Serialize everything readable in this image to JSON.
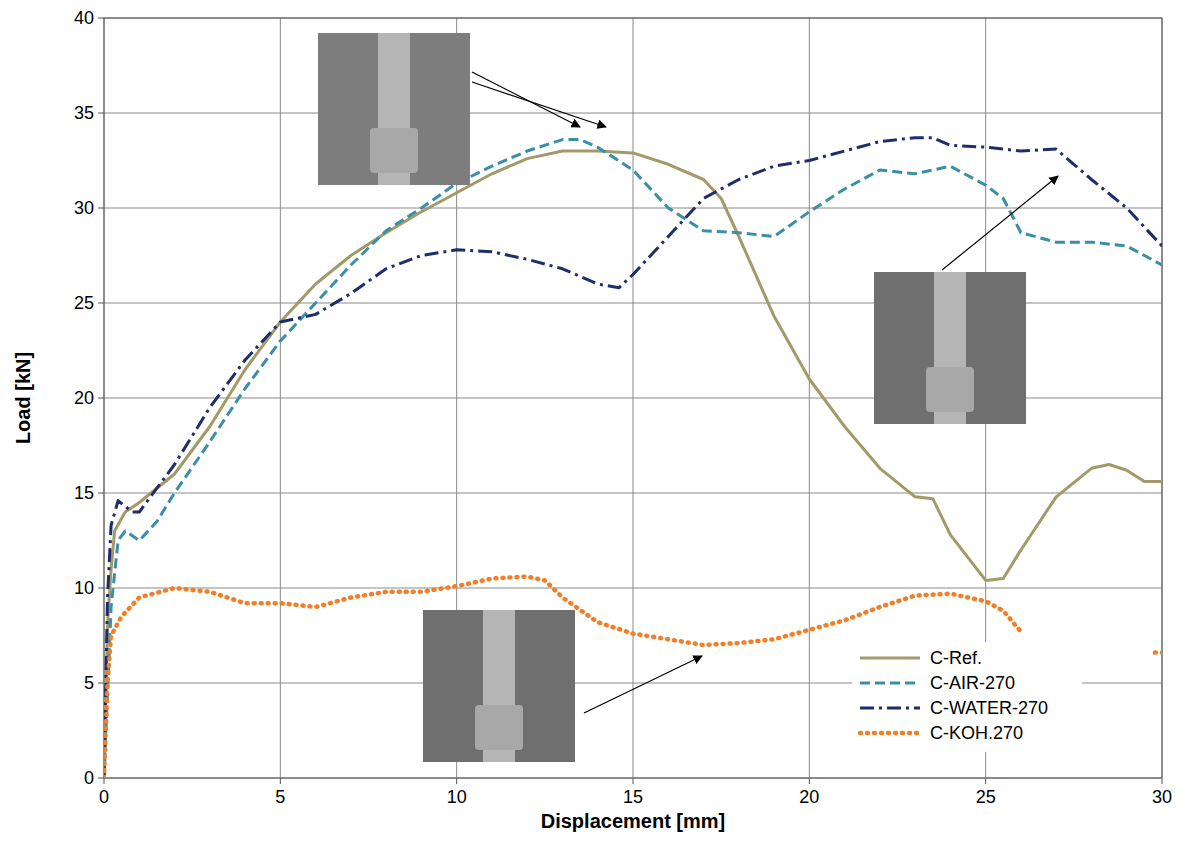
{
  "chart_data": {
    "type": "line",
    "xlabel": "Displacement [mm]",
    "ylabel": "Load [kN]",
    "xlim": [
      0,
      30
    ],
    "xticks": [
      0,
      5,
      10,
      15,
      20,
      25,
      30
    ],
    "ylim": [
      0,
      40
    ],
    "yticks": [
      0,
      5,
      10,
      15,
      20,
      25,
      30,
      35,
      40
    ],
    "grid": true,
    "legend": "bottom-right",
    "series": [
      {
        "name": "C-Ref.",
        "color": "#a39a6a",
        "line_style": "solid",
        "x": [
          0,
          0.1,
          0.2,
          0.3,
          0.6,
          1,
          2,
          3,
          4,
          5,
          6,
          7,
          8,
          9,
          10,
          11,
          12,
          13,
          14,
          15,
          16,
          17,
          17.5,
          18,
          19,
          20,
          21,
          22,
          23,
          23.5,
          24,
          25,
          25.5,
          26,
          27,
          28,
          28.5,
          29,
          29.5,
          30
        ],
        "values": [
          0,
          8,
          11,
          13,
          14,
          14.5,
          16,
          18.5,
          21.5,
          24,
          26,
          27.5,
          28.7,
          29.8,
          30.8,
          31.8,
          32.6,
          33,
          33,
          32.9,
          32.3,
          31.5,
          30.5,
          28.5,
          24.3,
          21,
          18.5,
          16.3,
          14.8,
          14.7,
          12.8,
          10.4,
          10.5,
          12,
          14.8,
          16.3,
          16.5,
          16.2,
          15.6,
          15.6
        ]
      },
      {
        "name": "C-AIR-270",
        "color": "#3a8fa8",
        "line_style": "dashed",
        "x": [
          0,
          0.2,
          0.4,
          0.6,
          1,
          1.5,
          2,
          3,
          4,
          5,
          6,
          7,
          8,
          9,
          10,
          11,
          12,
          13,
          13.5,
          14,
          15,
          16,
          17,
          18,
          19,
          20,
          21,
          22,
          23,
          24,
          25,
          25.5,
          26,
          27,
          28,
          29,
          30
        ],
        "values": [
          0,
          9,
          12.5,
          13,
          12.5,
          13.5,
          15,
          17.7,
          20.5,
          23,
          25,
          27,
          28.8,
          30,
          31.3,
          32.2,
          33,
          33.6,
          33.6,
          33.2,
          32,
          30,
          28.8,
          28.7,
          28.5,
          29.8,
          31,
          32,
          31.8,
          32.2,
          31.2,
          30.5,
          28.7,
          28.2,
          28.2,
          28,
          27
        ]
      },
      {
        "name": "C-WATER-270",
        "color": "#1f2d6b",
        "line_style": "dashdot",
        "x": [
          0,
          0.1,
          0.2,
          0.4,
          0.8,
          1,
          2,
          3,
          4,
          5,
          6,
          7,
          8,
          9,
          10,
          11,
          12,
          13,
          14,
          14.6,
          15,
          16,
          17,
          18,
          19,
          20,
          21,
          22,
          23,
          23.5,
          24,
          25,
          26,
          27,
          27.5,
          28,
          29,
          30
        ],
        "values": [
          0,
          9.5,
          13.3,
          14.6,
          14,
          14,
          16.5,
          19.5,
          22,
          24,
          24.4,
          25.5,
          26.8,
          27.5,
          27.8,
          27.7,
          27.3,
          26.8,
          26,
          25.8,
          26.5,
          28.5,
          30.5,
          31.5,
          32.2,
          32.5,
          33,
          33.5,
          33.7,
          33.7,
          33.3,
          33.2,
          33,
          33.1,
          32.3,
          31.5,
          30,
          28
        ]
      },
      {
        "name": "C-KOH.270",
        "color": "#f07f27",
        "line_style": "dotted",
        "x": [
          0,
          0.1,
          0.2,
          0.5,
          1,
          2,
          3,
          4,
          5,
          6,
          7,
          8,
          9,
          10,
          11,
          12,
          12.5,
          13,
          14,
          15,
          16,
          17,
          18,
          19,
          20,
          21,
          22,
          23,
          24,
          25,
          25.5,
          26,
          28,
          29.8,
          30
        ],
        "values": [
          0,
          5,
          7.5,
          8.5,
          9.5,
          10,
          9.8,
          9.2,
          9.2,
          9,
          9.5,
          9.8,
          9.8,
          10.1,
          10.5,
          10.6,
          10.4,
          9.5,
          8.2,
          7.6,
          7.3,
          7,
          7.1,
          7.3,
          7.8,
          8.3,
          9,
          9.6,
          9.7,
          9.3,
          8.8,
          7.7,
          null,
          6.6,
          6.6
        ]
      }
    ]
  }
}
